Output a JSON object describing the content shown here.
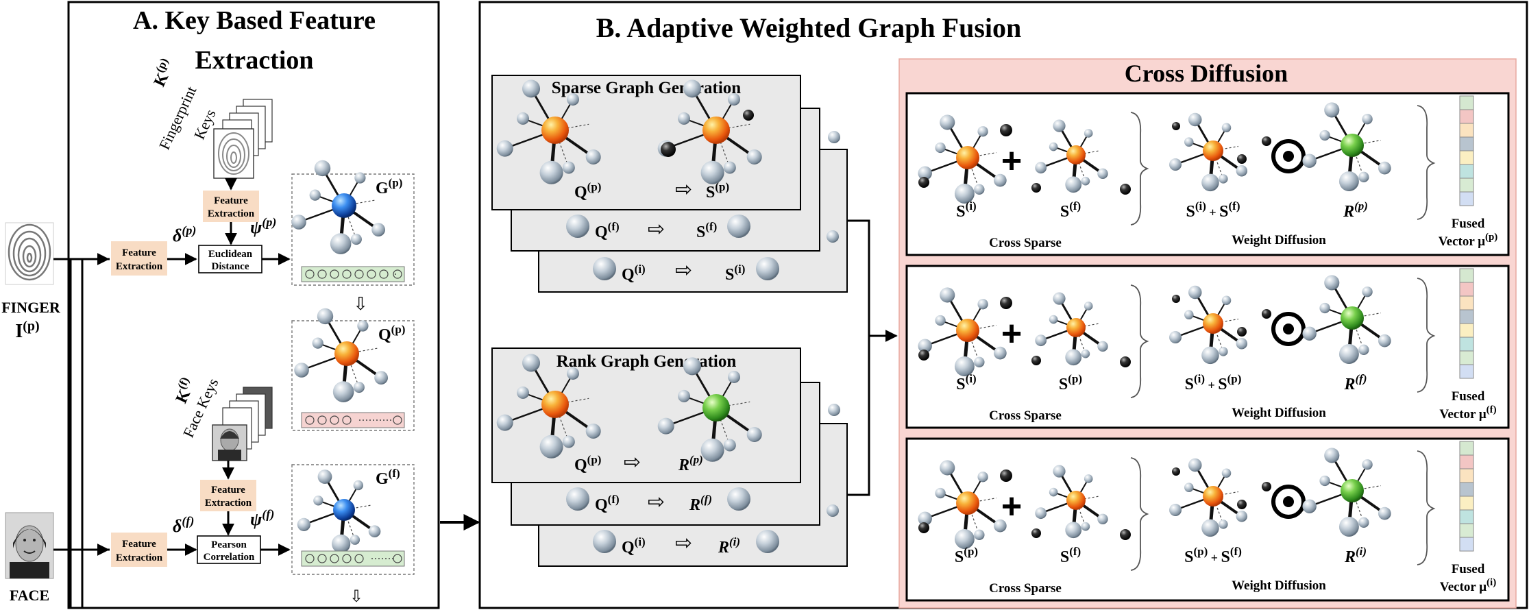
{
  "panel_a": {
    "title_line1": "A. Key Based Feature",
    "title_line2": "Extraction",
    "fingerprint_keys_symbol": "K",
    "fingerprint_keys_sup": "(p)",
    "fingerprint_keys_label1": "Fingerprint",
    "fingerprint_keys_label2": "Keys",
    "face_keys_symbol": "K",
    "face_keys_sup": "(f)",
    "face_keys_label": "Face Keys",
    "finger_input_label": "FINGER",
    "finger_input_symbol": "I",
    "finger_input_sup": "(p)",
    "face_input_label": "FACE",
    "feature_extraction_line1": "Feature",
    "feature_extraction_line2": "Extraction",
    "euclidean_line1": "Euclidean",
    "euclidean_line2": "Distance",
    "pearson_line1": "Pearson",
    "pearson_line2": "Correlation",
    "delta_p": "δ",
    "delta_p_sup": "(p)",
    "psi_p": "ψ",
    "psi_p_sup": "(p)",
    "delta_f": "δ",
    "delta_f_sup": "(f)",
    "psi_f": "ψ",
    "psi_f_sup": "(f)",
    "graph_g_p": "G",
    "graph_g_p_sup": "(p)",
    "graph_q_p": "Q",
    "graph_q_p_sup": "(p)",
    "graph_g_f": "G",
    "graph_g_f_sup": "(f)"
  },
  "panel_b": {
    "title": "B. Adaptive Weighted Graph Fusion",
    "sparse_title": "Sparse Graph Generation",
    "rank_title": "Rank Graph Generation",
    "sparse_rows": [
      {
        "q": "Q",
        "q_sup": "(p)",
        "s": "S",
        "s_sup": "(p)"
      },
      {
        "q": "Q",
        "q_sup": "(f)",
        "s": "S",
        "s_sup": "(f)"
      },
      {
        "q": "Q",
        "q_sup": "(i)",
        "s": "S",
        "s_sup": "(i)"
      }
    ],
    "rank_rows": [
      {
        "q": "Q",
        "q_sup": "(p)",
        "r": "R",
        "r_sup": "(p)"
      },
      {
        "q": "Q",
        "q_sup": "(f)",
        "r": "R",
        "r_sup": "(f)"
      },
      {
        "q": "Q",
        "q_sup": "(i)",
        "r": "R",
        "r_sup": "(i)"
      }
    ]
  },
  "cross_diffusion": {
    "title": "Cross Diffusion",
    "plus": "+",
    "cross_sparse_label": "Cross Sparse",
    "weight_diffusion_label": "Weight Diffusion",
    "fused_label": "Fused",
    "vector_label": "Vector μ",
    "rows": [
      {
        "a": "S",
        "a_sup": "(i)",
        "b": "S",
        "b_sup": "(f)",
        "sum1": "S",
        "sum1_sup": "(i)",
        "sum2": "S",
        "sum2_sup": "(f)",
        "r": "R",
        "r_sup": "(p)",
        "mu_sup": "(p)"
      },
      {
        "a": "S",
        "a_sup": "(i)",
        "b": "S",
        "b_sup": "(p)",
        "sum1": "S",
        "sum1_sup": "(i)",
        "sum2": "S",
        "sum2_sup": "(p)",
        "r": "R",
        "r_sup": "(f)",
        "mu_sup": "(f)"
      },
      {
        "a": "S",
        "a_sup": "(p)",
        "b": "S",
        "b_sup": "(f)",
        "sum1": "S",
        "sum1_sup": "(p)",
        "sum2": "S",
        "sum2_sup": "(f)",
        "r": "R",
        "r_sup": "(i)",
        "mu_sup": "(i)"
      }
    ]
  },
  "colors": {
    "orange_node": "#f07c10",
    "blue_node": "#1a63c6",
    "green_node": "#3fa32a",
    "gray_node": "#aab6c2",
    "feature_box": "#f8dcc4",
    "cross_bg": "#f9d6d2",
    "card_bg": "#e9e9e9",
    "green_strip": "#d6ecd0",
    "red_strip": "#f6d3d1",
    "vector_cells": [
      "#d5e8d0",
      "#f3c6c4",
      "#fbe3c0",
      "#b8c4cf",
      "#fbefc2",
      "#bfe3e0",
      "#d8ebd3",
      "#d2def3"
    ]
  }
}
